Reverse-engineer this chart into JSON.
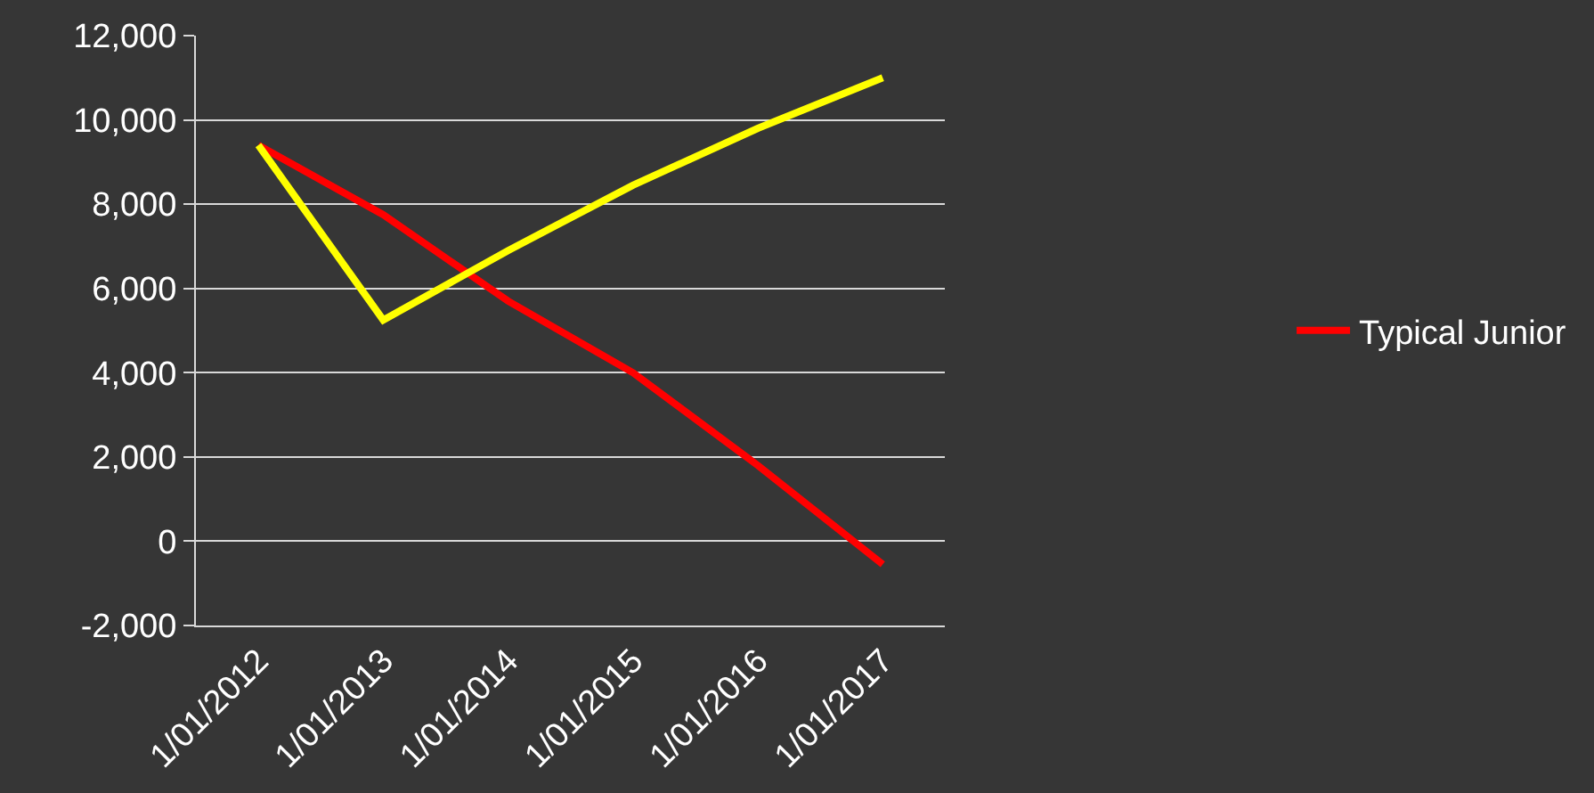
{
  "chart_data": {
    "type": "line",
    "categories": [
      "1/01/2012",
      "1/01/2013",
      "1/01/2014",
      "1/01/2015",
      "1/01/2016",
      "1/01/2017"
    ],
    "series": [
      {
        "name": "Typical Junior",
        "color": "#ff0000",
        "values": [
          9400,
          7750,
          5700,
          4000,
          1800,
          -550
        ]
      },
      {
        "color": "#ffff00",
        "values": [
          9400,
          5250,
          6900,
          8450,
          9800,
          11000
        ]
      }
    ],
    "ylim": [
      -2000,
      12000
    ],
    "yticks": [
      {
        "value": -2000,
        "label": "-2,000"
      },
      0,
      {
        "value": 2000,
        "label": "2,000"
      },
      {
        "value": 4000,
        "label": "4,000"
      },
      {
        "value": 6000,
        "label": "6,000"
      },
      {
        "value": 8000,
        "label": "8,000"
      },
      {
        "value": 10000,
        "label": "10,000"
      },
      {
        "value": 12000,
        "label": "12,000"
      }
    ],
    "grid": "y",
    "legend": "right",
    "marker": "none",
    "line_style": "solid"
  }
}
